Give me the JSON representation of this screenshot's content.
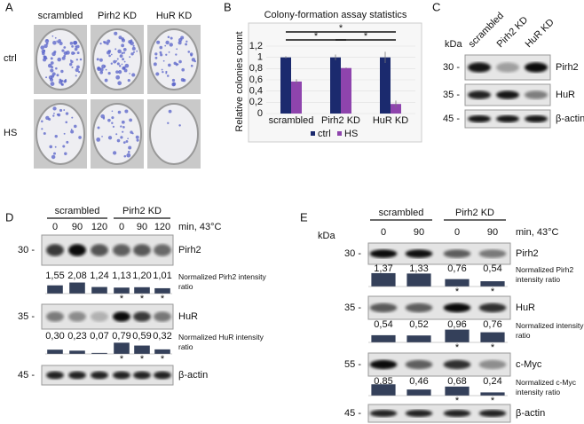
{
  "panel_a": {
    "label": "A",
    "columns": [
      "scrambled",
      "Pirh2 KD",
      "HuR KD"
    ],
    "rows": [
      "ctrl",
      "HS"
    ]
  },
  "chart_data": {
    "type": "bar",
    "label": "B",
    "title": "Colony-formation assay statistics",
    "y_label": "Relative colonies count",
    "categories": [
      "scrambled",
      "Pirh2 KD",
      "HuR KD"
    ],
    "series": [
      {
        "name": "ctrl",
        "color": "#1b2a6e",
        "values": [
          1,
          1,
          1
        ],
        "errors": [
          0.02,
          0.05,
          0.1
        ]
      },
      {
        "name": "HS",
        "color": "#8e44ad",
        "values": [
          0.57,
          0.81,
          0.17
        ],
        "errors": [
          0.04,
          0.01,
          0.06
        ]
      }
    ],
    "ylim": [
      0,
      1.2
    ],
    "yticks": [
      0,
      {
        "value": 0.2,
        "label": "0,2"
      },
      {
        "value": 0.4,
        "label": "0,4"
      },
      {
        "value": 0.6,
        "label": "0,6"
      },
      {
        "value": 0.8,
        "label": "0,8"
      },
      1,
      {
        "value": 1.2,
        "label": "1,2"
      }
    ],
    "legend": "bottom",
    "significance": [
      {
        "from": 0,
        "to": 2,
        "text": "*"
      },
      {
        "from": 0,
        "to": 1,
        "text": "*"
      },
      {
        "from": 1,
        "to": 2,
        "text": "*"
      }
    ]
  },
  "panel_c": {
    "label": "C",
    "unit": "kDa",
    "lanes": [
      "scrambled",
      "Pirh2 KD",
      "HuR KD"
    ],
    "rows": [
      {
        "marker": "30 -",
        "protein": "Pirh2"
      },
      {
        "marker": "35 -",
        "protein": "HuR"
      },
      {
        "marker": "45 -",
        "protein": "β-actin"
      }
    ]
  },
  "panel_d": {
    "label": "D",
    "groups": [
      "scrambled",
      "Pirh2 KD"
    ],
    "times": [
      "0",
      "90",
      "120",
      "0",
      "90",
      "120"
    ],
    "condition": "min, 43°C",
    "rows": [
      {
        "marker": "30 -",
        "protein": "Pirh2",
        "quant": {
          "caption": "Normalized Pirh2 intensity ratio",
          "values": [
            1.55,
            2.08,
            1.24,
            1.13,
            1.2,
            1.01
          ],
          "value_labels": [
            "1,55",
            "2,08",
            "1,24",
            "1,13",
            "1,20",
            "1,01"
          ],
          "stars": [
            null,
            null,
            null,
            "*",
            "*",
            "*"
          ]
        }
      },
      {
        "marker": "35 -",
        "protein": "HuR",
        "quant": {
          "caption": "Normalized HuR intensity ratio",
          "values": [
            0.3,
            0.23,
            0.07,
            0.79,
            0.59,
            0.32
          ],
          "value_labels": [
            "0,30",
            "0,23",
            "0,07",
            "0,79",
            "0,59",
            "0,32"
          ],
          "stars": [
            null,
            null,
            null,
            "*",
            "*",
            "*"
          ]
        }
      },
      {
        "marker": "45 -",
        "protein": "β-actin"
      }
    ]
  },
  "panel_e": {
    "label": "E",
    "unit": "kDa",
    "groups": [
      "scrambled",
      "Pirh2 KD"
    ],
    "times": [
      "0",
      "90",
      "0",
      "90"
    ],
    "condition": "min, 43°C",
    "rows": [
      {
        "marker": "30 -",
        "protein": "Pirh2",
        "quant": {
          "caption": "Normalized Pirh2 intensity ratio",
          "values": [
            1.37,
            1.33,
            0.76,
            0.54
          ],
          "value_labels": [
            "1,37",
            "1,33",
            "0,76",
            "0,54"
          ],
          "stars": [
            null,
            null,
            "*",
            "*"
          ]
        }
      },
      {
        "marker": "35 -",
        "protein": "HuR",
        "quant": {
          "caption": "Normalized intensity ratio",
          "values": [
            0.54,
            0.52,
            0.96,
            0.76
          ],
          "value_labels": [
            "0,54",
            "0,52",
            "0,96",
            "0,76"
          ],
          "stars": [
            null,
            null,
            "*",
            "*"
          ]
        }
      },
      {
        "marker": "55 -",
        "protein": "c-Myc",
        "quant": {
          "caption": "Normalized c-Myc intensity ratio",
          "values": [
            0.85,
            0.46,
            0.68,
            0.24
          ],
          "value_labels": [
            "0,85",
            "0,46",
            "0,68",
            "0,24"
          ],
          "stars": [
            null,
            null,
            "*",
            "*"
          ]
        }
      },
      {
        "marker": "45 -",
        "protein": "β-actin"
      }
    ]
  }
}
